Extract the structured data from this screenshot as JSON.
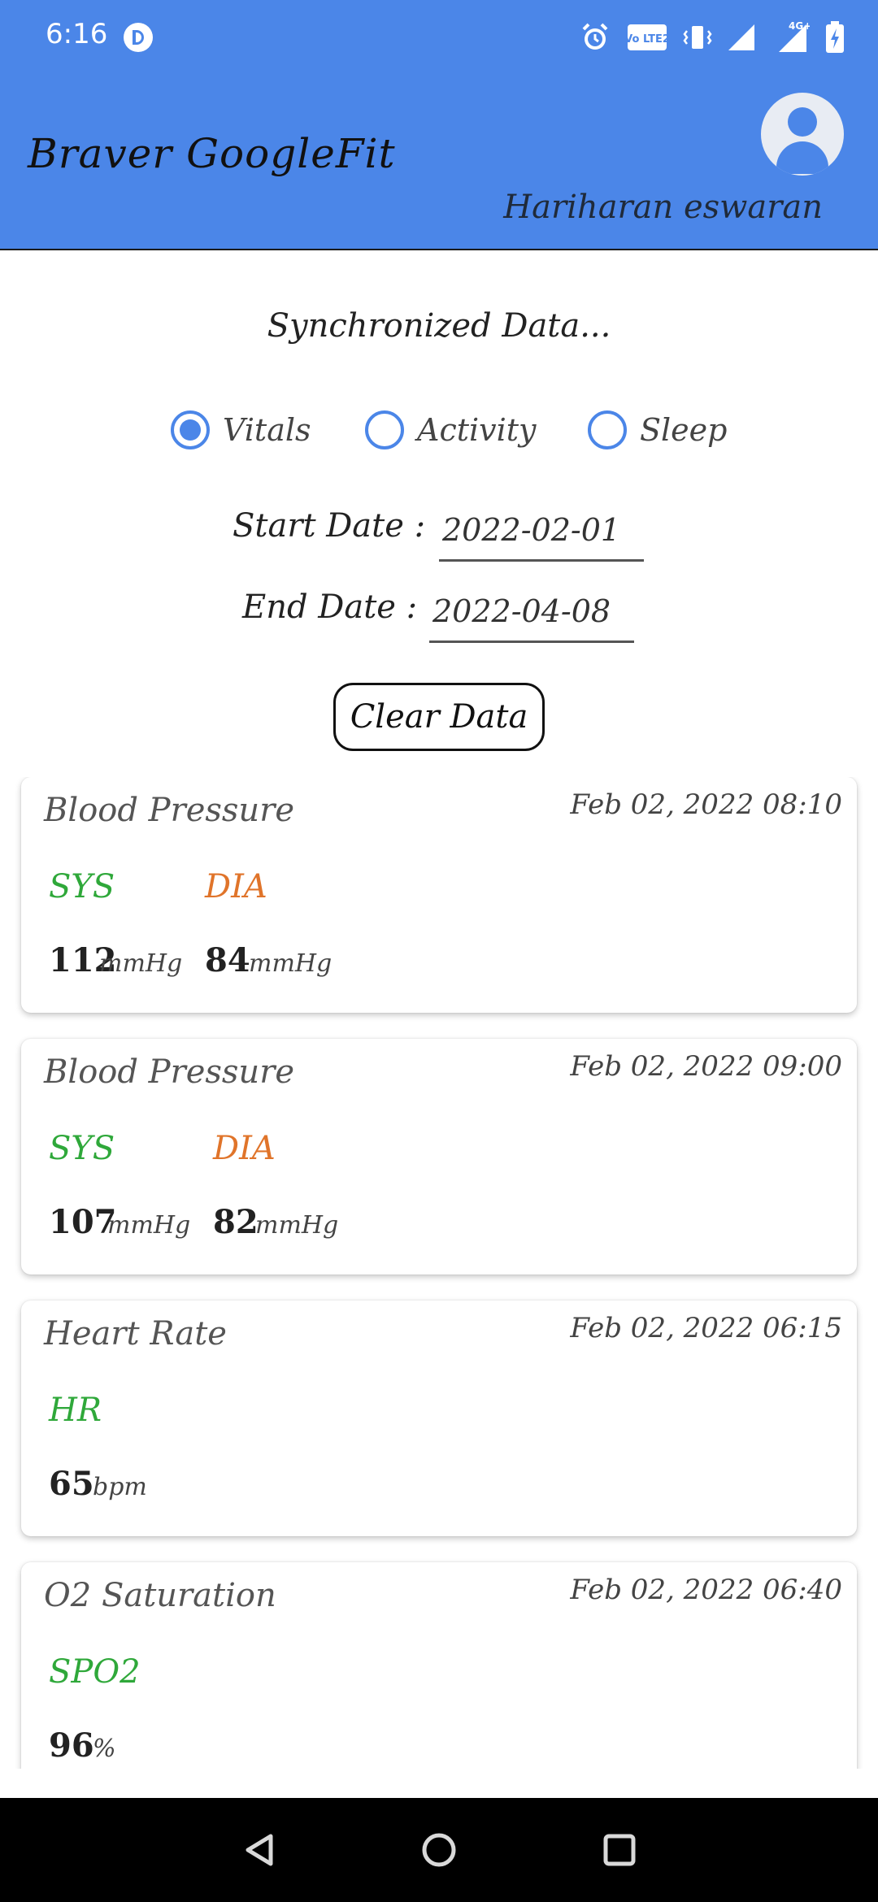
{
  "status_bar": {
    "time": "6:16",
    "icons": [
      "p-app-icon",
      "alarm-icon",
      "volte-icon",
      "vibrate-icon",
      "signal-icon",
      "4g-signal-icon",
      "battery-charging-icon"
    ],
    "volte_text": "Vo LTE2",
    "network_text": "4G+"
  },
  "app_bar": {
    "title": "Braver GoogleFit",
    "user_name": "Hariharan eswaran",
    "background_color": "#4b86e8"
  },
  "controls": {
    "section_title": "Synchronized Data...",
    "radios": [
      {
        "label": "Vitals",
        "selected": true
      },
      {
        "label": "Activity",
        "selected": false
      },
      {
        "label": "Sleep",
        "selected": false
      }
    ],
    "start_date_label": "Start Date :",
    "start_date_value": "2022-02-01",
    "end_date_label": "End Date :",
    "end_date_value": "2022-04-08",
    "clear_button_label": "Clear Data"
  },
  "cards": [
    {
      "title": "Blood Pressure",
      "time": "Feb 02, 2022 08:10",
      "metrics": [
        {
          "label": "SYS",
          "color": "#2fa83a",
          "value": "112",
          "unit": "mmHg"
        },
        {
          "label": "DIA",
          "color": "#e0742a",
          "value": "84",
          "unit": "mmHg"
        }
      ]
    },
    {
      "title": "Blood Pressure",
      "time": "Feb 02, 2022 09:00",
      "metrics": [
        {
          "label": "SYS",
          "color": "#2fa83a",
          "value": "107",
          "unit": "mmHg"
        },
        {
          "label": "DIA",
          "color": "#e0742a",
          "value": "82",
          "unit": "mmHg"
        }
      ]
    },
    {
      "title": "Heart Rate",
      "time": "Feb 02, 2022 06:15",
      "metrics": [
        {
          "label": "HR",
          "color": "#2fa83a",
          "value": "65",
          "unit": "bpm"
        }
      ]
    },
    {
      "title": "O2 Saturation",
      "time": "Feb 02, 2022 06:40",
      "metrics": [
        {
          "label": "SPO2",
          "color": "#2fa83a",
          "value": "96",
          "unit": "%"
        }
      ]
    }
  ],
  "nav_bar": {
    "buttons": [
      "back-icon",
      "home-icon",
      "recents-icon"
    ]
  }
}
